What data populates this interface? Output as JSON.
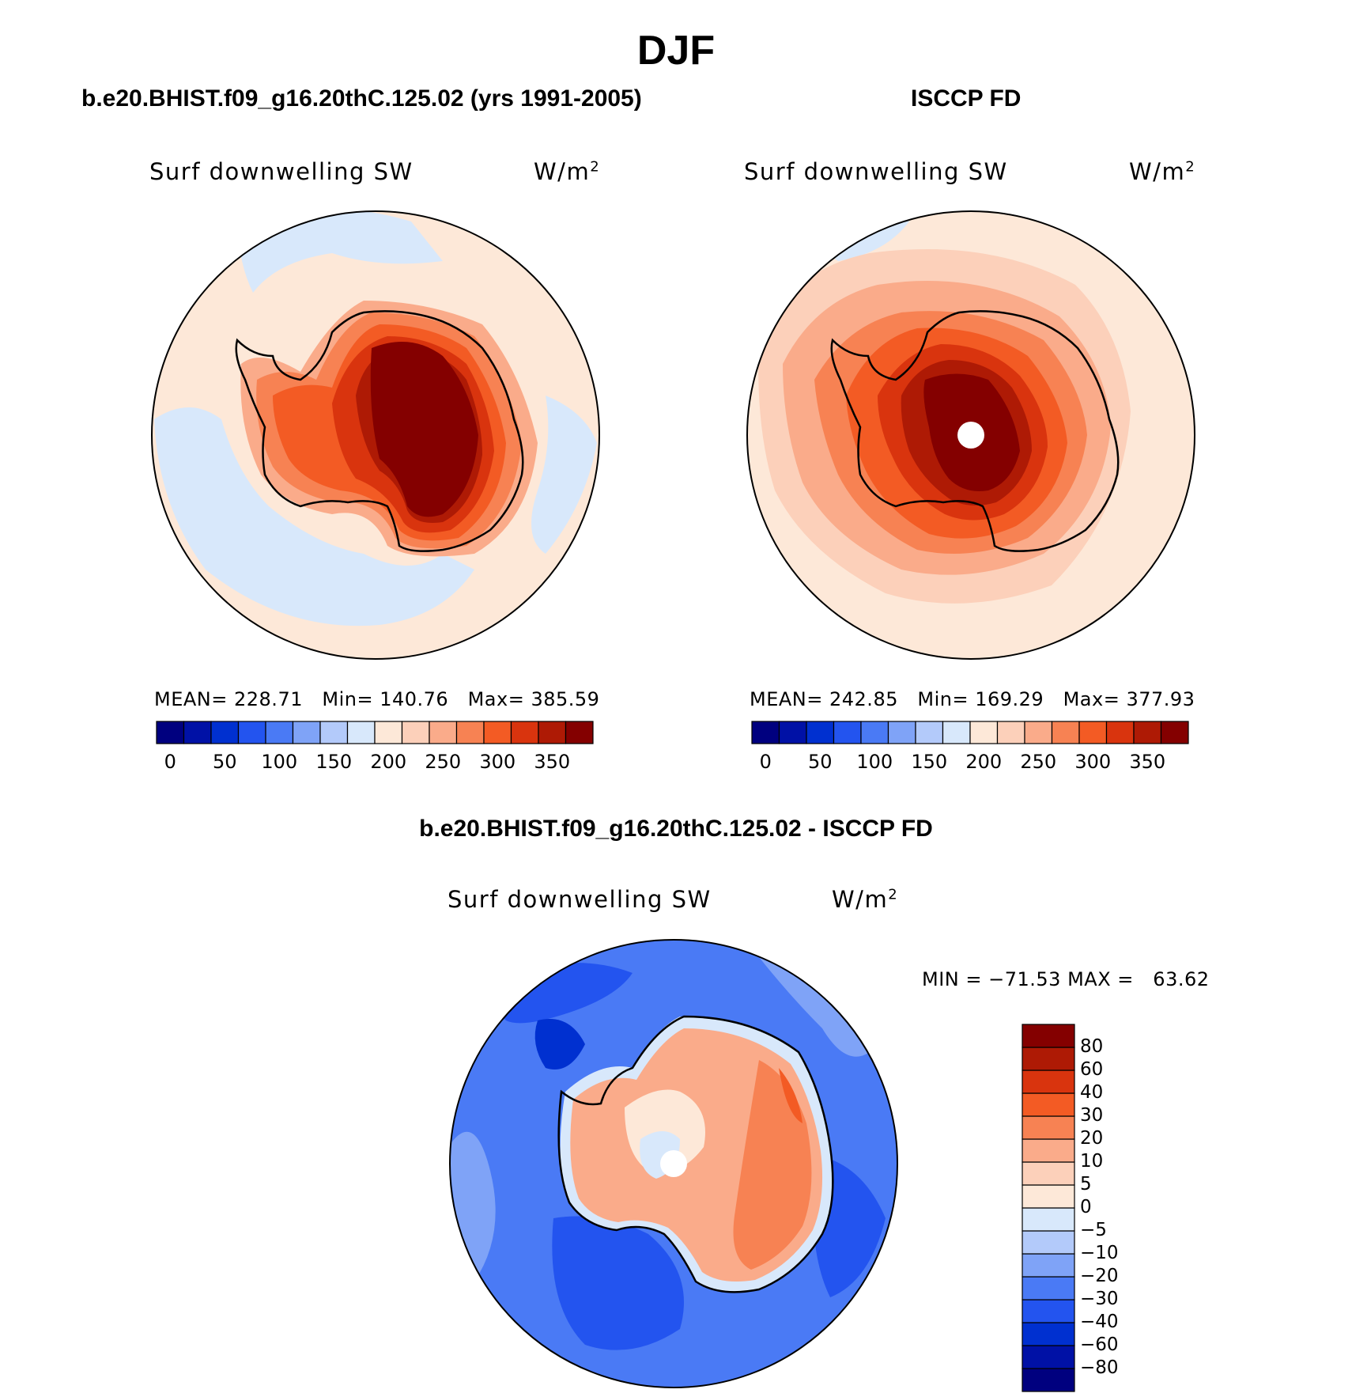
{
  "figure": {
    "title": "DJF",
    "colors": {
      "coast": "#000000",
      "background": "#ffffff"
    }
  },
  "panels": [
    {
      "id": "model",
      "title": "b.e20.BHIST.f09_g16.20thC.125.02 (yrs 1991-2005)",
      "variable": "Surf downwelling SW",
      "units": "W/m",
      "units_exp": "2",
      "stats": {
        "mean_label": "MEAN=",
        "mean": "228.71",
        "min_label": "Min=",
        "min": "140.76",
        "max_label": "Max=",
        "max": "385.59"
      }
    },
    {
      "id": "obs",
      "title": "ISCCP FD",
      "variable": "Surf downwelling SW",
      "units": "W/m",
      "units_exp": "2",
      "stats": {
        "mean_label": "MEAN=",
        "mean": "242.85",
        "min_label": "Min=",
        "min": "169.29",
        "max_label": "Max=",
        "max": "377.93"
      }
    },
    {
      "id": "diff",
      "title": "b.e20.BHIST.f09_g16.20thC.125.02 - ISCCP FD",
      "variable": "Surf downwelling SW",
      "units": "W/m",
      "units_exp": "2",
      "stats": {
        "min_label": "MIN =",
        "min": "−71.53",
        "max_label": "MAX =",
        "max": "63.62"
      }
    }
  ],
  "colorbars": {
    "absolute": {
      "colors": [
        "#00007f",
        "#0011a6",
        "#0030d0",
        "#2354ef",
        "#4a7af5",
        "#7fa3f7",
        "#b3cafa",
        "#d8e8fb",
        "#fde8d8",
        "#fcd0ba",
        "#faab8a",
        "#f78253",
        "#f35b24",
        "#d9340e",
        "#ae1a05",
        "#840000"
      ],
      "labels": [
        "0",
        "50",
        "100",
        "150",
        "200",
        "250",
        "300",
        "350"
      ]
    },
    "difference": {
      "colors": [
        "#00007f",
        "#0011a6",
        "#0030d0",
        "#2354ef",
        "#4a7af5",
        "#7fa3f7",
        "#b3cafa",
        "#d8e8fb",
        "#fde8d8",
        "#fcd0ba",
        "#faab8a",
        "#f78253",
        "#f35b24",
        "#d9340e",
        "#ae1a05",
        "#840000"
      ],
      "labels": [
        "80",
        "60",
        "40",
        "30",
        "20",
        "10",
        "5",
        "0",
        "−5",
        "−10",
        "−20",
        "−30",
        "−40",
        "−60",
        "−80"
      ]
    }
  }
}
